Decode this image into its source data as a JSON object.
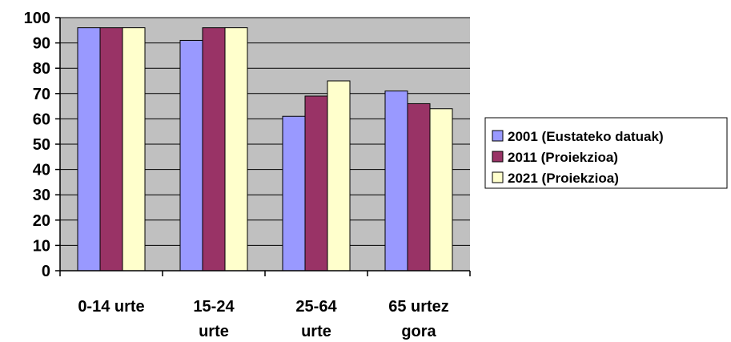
{
  "chart_data": {
    "type": "bar",
    "categories": [
      [
        "0-14 urte"
      ],
      [
        "15-24",
        "urte"
      ],
      [
        "25-64",
        "urte"
      ],
      [
        "65 urtez",
        "gora"
      ]
    ],
    "series": [
      {
        "name": "2001 (Eustateko datuak)",
        "values": [
          96,
          91,
          61,
          71
        ],
        "color": "#9999ff"
      },
      {
        "name": "2011 (Proiekzioa)",
        "values": [
          96,
          96,
          69,
          66
        ],
        "color": "#993366"
      },
      {
        "name": "2021 (Proiekzioa)",
        "values": [
          96,
          96,
          75,
          64
        ],
        "color": "#ffffcc"
      }
    ],
    "ylim": [
      0,
      100
    ],
    "yticks": [
      0,
      10,
      20,
      30,
      40,
      50,
      60,
      70,
      80,
      90,
      100
    ],
    "plot_background": "#c0c0c0",
    "grid": true,
    "legend_position": "right"
  }
}
